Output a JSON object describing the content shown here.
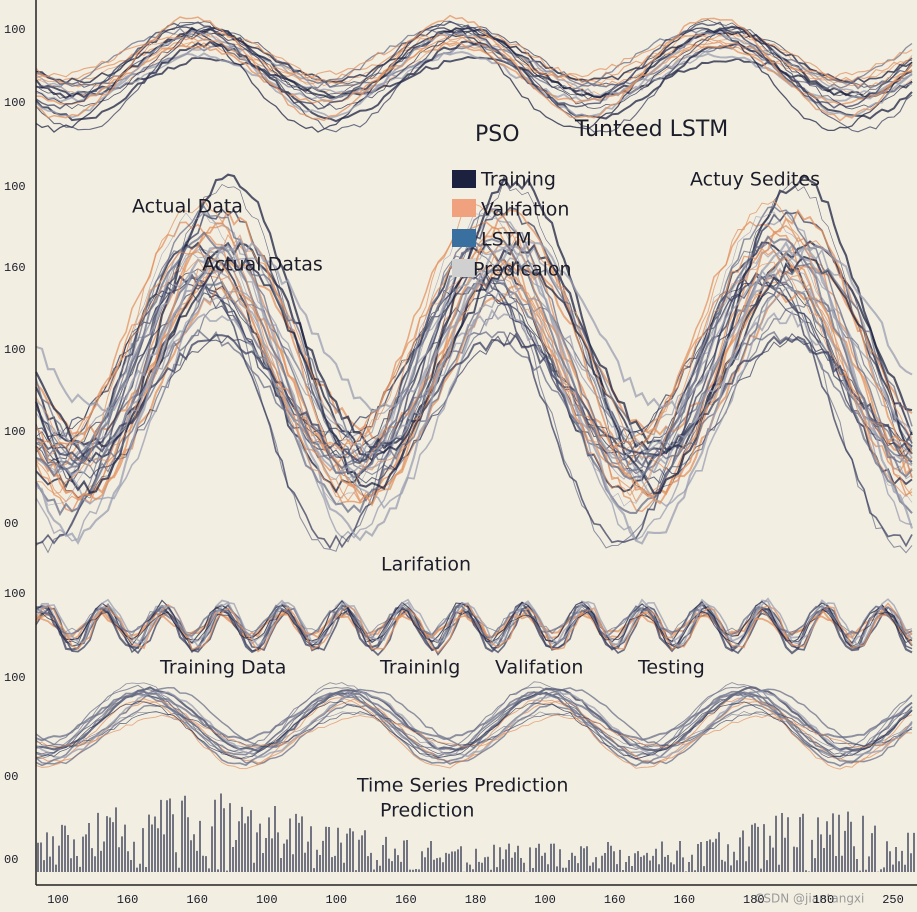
{
  "header": {
    "left": "PSO",
    "right": "Tunteed LSTM"
  },
  "legend": {
    "items": [
      "Training",
      "Valifation",
      "LSTM",
      "Predicalon"
    ]
  },
  "annotations": [
    "Actual Data",
    "Actual Datas",
    "Actuy Sedites",
    "Larifation",
    "Training Data",
    "Traininlg",
    "Valifation",
    "Testing",
    "Time Series Prediction",
    "Prediction"
  ],
  "y_labels": [
    "100",
    "100",
    "100",
    "160",
    "100",
    "100",
    "00",
    "100",
    "100",
    "00",
    "00"
  ],
  "x_labels": [
    "100",
    "160",
    "160",
    "100",
    "100",
    "160",
    "180",
    "100",
    "160",
    "160",
    "180",
    "180",
    "250"
  ],
  "watermark": "CSDN @jiantangxi"
}
